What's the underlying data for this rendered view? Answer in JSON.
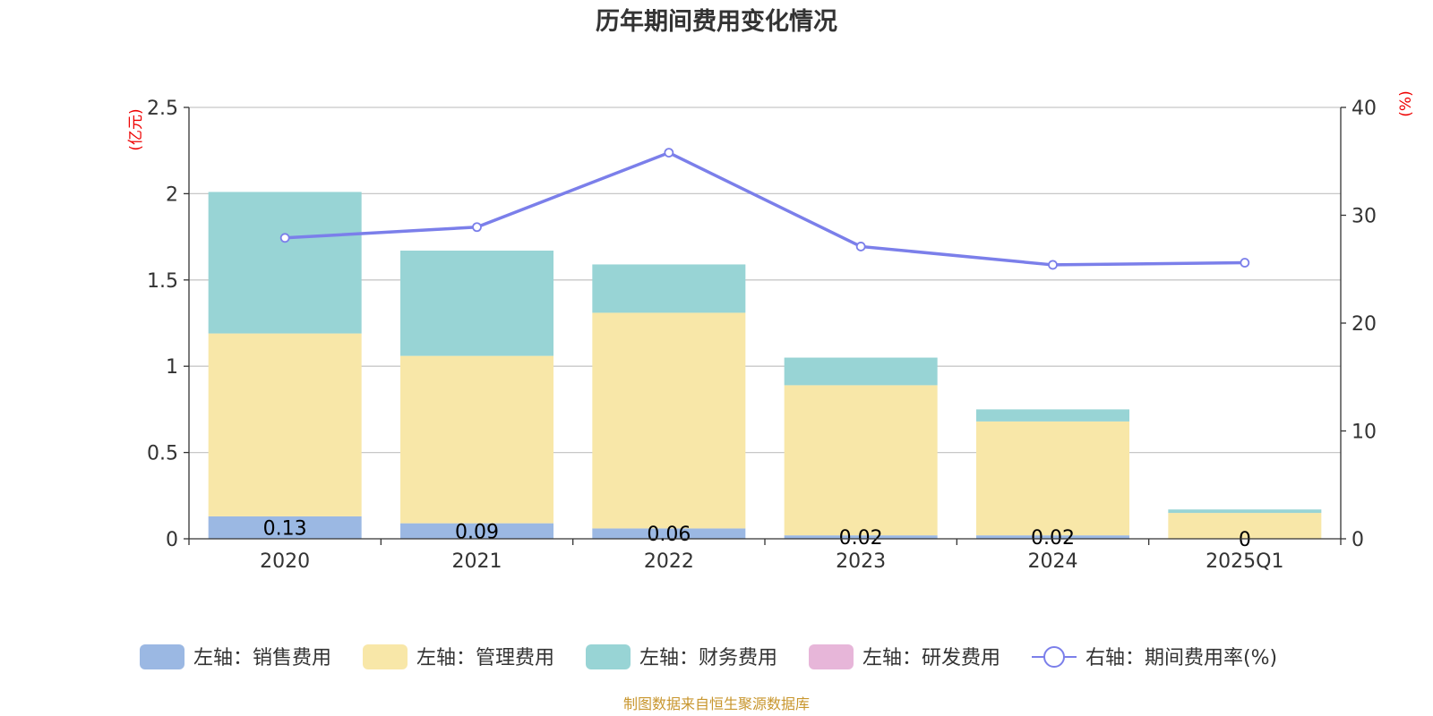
{
  "chart_data": {
    "type": "bar",
    "stacked": true,
    "title": "历年期间费用变化情况",
    "categories": [
      "2020",
      "2021",
      "2022",
      "2023",
      "2024",
      "2025Q1"
    ],
    "left_axis": {
      "unit": "(亿元)",
      "ylim": [
        0,
        2.5
      ],
      "ticks": [
        "0",
        "0.5",
        "1",
        "1.5",
        "2",
        "2.5"
      ]
    },
    "right_axis": {
      "unit": "(%)",
      "ylim": [
        0,
        40
      ],
      "ticks": [
        "0",
        "10",
        "20",
        "30",
        "40"
      ]
    },
    "series": [
      {
        "name": "左轴：销售费用",
        "axis": "left",
        "color": "#9bb8e3",
        "values": [
          0.13,
          0.09,
          0.06,
          0.02,
          0.02,
          0
        ],
        "labels": [
          "0.13",
          "0.09",
          "0.06",
          "0.02",
          "0.02",
          "0"
        ]
      },
      {
        "name": "左轴：管理费用",
        "axis": "left",
        "color": "#f8e7a8",
        "values": [
          1.06,
          0.97,
          1.25,
          0.87,
          0.66,
          0.15
        ]
      },
      {
        "name": "左轴：财务费用",
        "axis": "left",
        "color": "#98d4d5",
        "values": [
          0.82,
          0.61,
          0.28,
          0.16,
          0.07,
          0.02
        ]
      },
      {
        "name": "左轴：研发费用",
        "axis": "left",
        "color": "#e7b6d9",
        "values": [
          0,
          0,
          0,
          0,
          0,
          0
        ]
      },
      {
        "name": "右轴：期间费用率(%)",
        "axis": "right",
        "type": "line",
        "color": "#7b7fea",
        "values": [
          27.9,
          28.9,
          35.8,
          27.1,
          25.4,
          25.6
        ]
      }
    ],
    "grid": true,
    "legend_position": "bottom"
  },
  "footer": {
    "source": "制图数据来自恒生聚源数据库"
  }
}
